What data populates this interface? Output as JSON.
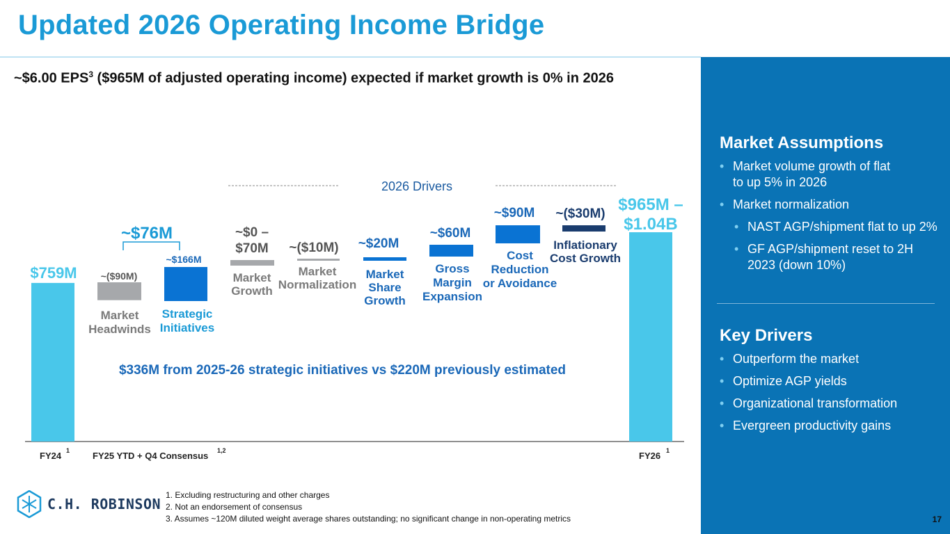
{
  "title": "Updated 2026 Operating Income Bridge",
  "subtitle": {
    "main": "~$6.00 EPS",
    "sup": "3",
    "rest": " ($965M of adjusted operating income) expected if market growth is 0% in 2026"
  },
  "colors": {
    "title": "#1a9ad6",
    "light_bar": "#49c7ea",
    "gray_bar": "#a6a8ab",
    "blue_bar": "#0a73d3",
    "dark_bar": "#1a3c6e",
    "label_blue": "#1a68b8",
    "panel": "#0a73b5"
  },
  "chart_data": {
    "type": "bar",
    "subtype": "waterfall",
    "title": "2026 Drivers",
    "unit": "$M",
    "bars": [
      {
        "id": "fy24",
        "value_label": "$759M",
        "value": 759
      },
      {
        "id": "market-headwinds",
        "value_label": "~($90M)",
        "name_lines": [
          "Market",
          "Headwinds"
        ],
        "value": -90
      },
      {
        "id": "strategic-initiatives",
        "value_label": "~$166M",
        "name_lines": [
          "Strategic",
          "Initiatives"
        ],
        "value": 166
      },
      {
        "id": "market-growth",
        "value_label_lines": [
          "~$0 –",
          "$70M"
        ],
        "name_lines": [
          "Market",
          "Growth"
        ],
        "value": 0
      },
      {
        "id": "market-normalization",
        "value_label": "~($10M)",
        "name_lines": [
          "Market",
          "Normalization"
        ],
        "value": -10
      },
      {
        "id": "market-share-growth",
        "value_label": "~$20M",
        "name_lines": [
          "Market",
          "Share",
          "Growth"
        ],
        "value": 20
      },
      {
        "id": "gross-margin-expansion",
        "value_label": "~$60M",
        "name_lines": [
          "Gross",
          "Margin",
          "Expansion"
        ],
        "value": 60
      },
      {
        "id": "cost-reduction",
        "value_label": "~$90M",
        "name_lines": [
          "Cost",
          "Reduction",
          "or Avoidance"
        ],
        "value": 90
      },
      {
        "id": "inflationary-cost-growth",
        "value_label": "~($30M)",
        "name_lines": [
          "Inflationary",
          "Cost Growth"
        ],
        "value": -30
      },
      {
        "id": "fy26",
        "value_label_lines": [
          "$965M –",
          "$1.04B"
        ],
        "value": 965
      }
    ],
    "bracket_label": "~$76M",
    "callout": "$336M from  2025-26 strategic initiatives vs $220M previously estimated",
    "x_labels": [
      {
        "text": "FY24",
        "sup": "1"
      },
      {
        "text": "FY25 YTD  + Q4 Consensus",
        "sup": "1,2"
      },
      {
        "text": "FY26",
        "sup": "1"
      }
    ]
  },
  "panel": {
    "market_title": "Market Assumptions",
    "market_items": [
      "Market volume growth of flat to up 5% in 2026",
      "Market normalization",
      "NAST AGP/shipment flat to up 2%",
      "GF AGP/shipment reset to 2H 2023 (down 10%)"
    ],
    "drivers_title": "Key Drivers",
    "driver_items": [
      "Outperform the market",
      "Optimize AGP yields",
      "Organizational transformation",
      "Evergreen productivity gains"
    ]
  },
  "footnotes": [
    "1.  Excluding restructuring and other charges",
    "2.  Not an endorsement of consensus",
    "3.  Assumes ~120M diluted weight average shares outstanding; no significant change in non-operating metrics"
  ],
  "logo": {
    "name": "C.H. ROBINSON"
  },
  "page_number": "17"
}
